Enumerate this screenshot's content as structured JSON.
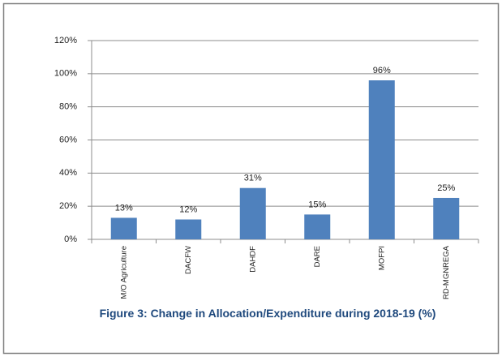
{
  "chart_data": {
    "type": "bar",
    "title": "Figure 3: Change in Allocation/Expenditure during 2018-19 (%)",
    "categories": [
      "M/O Agriculture",
      "DACFW",
      "DAHDF",
      "DARE",
      "MOFPI",
      "RD-MGNREGA"
    ],
    "values": [
      13,
      12,
      31,
      15,
      96,
      25
    ],
    "value_labels": [
      "13%",
      "12%",
      "31%",
      "15%",
      "96%",
      "25%"
    ],
    "color": "#4f81bd",
    "ylim": [
      0,
      120
    ],
    "yticks": [
      {
        "value": 0,
        "label": "0%"
      },
      {
        "value": 20,
        "label": "20%"
      },
      {
        "value": 40,
        "label": "40%"
      },
      {
        "value": 60,
        "label": "60%"
      },
      {
        "value": 80,
        "label": "80%"
      },
      {
        "value": 100,
        "label": "100%"
      },
      {
        "value": 120,
        "label": "120%"
      }
    ],
    "grid": true
  }
}
